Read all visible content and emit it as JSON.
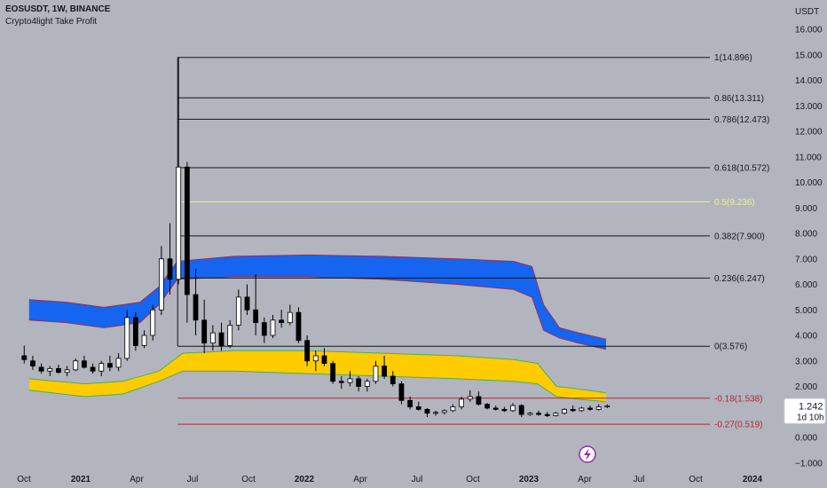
{
  "header": {
    "symbol_line": "EOSUSDT, 1W, BINANCE",
    "indicator": "Crypto4light Take Profit"
  },
  "axis": {
    "currency": "USDT",
    "price_ticks": [
      "16.000",
      "15.000",
      "14.000",
      "13.000",
      "12.000",
      "11.000",
      "10.000",
      "9.000",
      "8.000",
      "7.000",
      "6.000",
      "5.000",
      "4.000",
      "3.000",
      "2.000",
      "1.000",
      "0.000",
      "−1.000"
    ],
    "time_ticks": [
      {
        "label": "Oct",
        "bold": false
      },
      {
        "label": "2021",
        "bold": true
      },
      {
        "label": "Apr",
        "bold": false
      },
      {
        "label": "Jul",
        "bold": false
      },
      {
        "label": "Oct",
        "bold": false
      },
      {
        "label": "2022",
        "bold": true
      },
      {
        "label": "Apr",
        "bold": false
      },
      {
        "label": "Jul",
        "bold": false
      },
      {
        "label": "Oct",
        "bold": false
      },
      {
        "label": "2023",
        "bold": true
      },
      {
        "label": "Apr",
        "bold": false
      },
      {
        "label": "Jul",
        "bold": false
      },
      {
        "label": "Oct",
        "bold": false
      },
      {
        "label": "2024",
        "bold": true
      }
    ]
  },
  "price_badge": {
    "price": "1.242",
    "countdown": "1d 10h"
  },
  "flash_icon": "lightning-icon",
  "colors": {
    "background": "#b2b5be",
    "fib_line": "#131722",
    "fib_mid": "#f7f06b",
    "fib_neg": "#b22833",
    "blue_band": "#1565f0",
    "yellow_band": "#ffcc00",
    "band_edge_red": "#9c2b5a",
    "band_edge_green": "#4caf50",
    "candle_up": "#ffffff",
    "candle_down": "#000000"
  },
  "chart_data": {
    "type": "candlestick",
    "fib_levels": [
      {
        "label": "1(14.896)",
        "value": 14.896,
        "style": "black"
      },
      {
        "label": "0.86(13.311)",
        "value": 13.311,
        "style": "black"
      },
      {
        "label": "0.786(12.473)",
        "value": 12.473,
        "style": "black"
      },
      {
        "label": "0.618(10.572)",
        "value": 10.572,
        "style": "black"
      },
      {
        "label": "0.5(9.236)",
        "value": 9.236,
        "style": "mid"
      },
      {
        "label": "0.382(7.900)",
        "value": 7.9,
        "style": "black"
      },
      {
        "label": "0.236(6.247)",
        "value": 6.247,
        "style": "black"
      },
      {
        "label": "0(3.576)",
        "value": 3.576,
        "style": "black"
      },
      {
        "label": "-0.18(1.538)",
        "value": 1.538,
        "style": "neg"
      },
      {
        "label": "-0.27(0.519)",
        "value": 0.519,
        "style": "neg"
      }
    ],
    "upper_band": [
      {
        "t": "2020-09-01",
        "top": 5.4,
        "bot": 4.6
      },
      {
        "t": "2020-11-01",
        "top": 5.3,
        "bot": 4.5
      },
      {
        "t": "2021-01-01",
        "top": 5.1,
        "bot": 4.3
      },
      {
        "t": "2021-03-01",
        "top": 5.3,
        "bot": 4.5
      },
      {
        "t": "2021-04-01",
        "top": 5.9,
        "bot": 5.2
      },
      {
        "t": "2021-05-01",
        "top": 6.9,
        "bot": 6.2
      },
      {
        "t": "2021-08-01",
        "top": 7.1,
        "bot": 6.3
      },
      {
        "t": "2021-12-01",
        "top": 7.15,
        "bot": 6.3
      },
      {
        "t": "2022-04-01",
        "top": 7.1,
        "bot": 6.2
      },
      {
        "t": "2022-08-01",
        "top": 7.0,
        "bot": 6.0
      },
      {
        "t": "2022-11-01",
        "top": 6.9,
        "bot": 5.8
      },
      {
        "t": "2022-12-01",
        "top": 6.7,
        "bot": 5.5
      },
      {
        "t": "2022-12-20",
        "top": 5.2,
        "bot": 4.2
      },
      {
        "t": "2023-01-15",
        "top": 4.3,
        "bot": 3.9
      },
      {
        "t": "2023-02-15",
        "top": 4.1,
        "bot": 3.7
      },
      {
        "t": "2023-04-01",
        "top": 3.85,
        "bot": 3.45
      }
    ],
    "lower_band": [
      {
        "t": "2020-09-01",
        "top": 2.3,
        "bot": 1.85
      },
      {
        "t": "2020-12-01",
        "top": 2.1,
        "bot": 1.6
      },
      {
        "t": "2021-02-01",
        "top": 2.2,
        "bot": 1.7
      },
      {
        "t": "2021-04-01",
        "top": 2.6,
        "bot": 2.2
      },
      {
        "t": "2021-05-10",
        "top": 3.3,
        "bot": 2.6
      },
      {
        "t": "2021-08-01",
        "top": 3.4,
        "bot": 2.6
      },
      {
        "t": "2021-12-01",
        "top": 3.4,
        "bot": 2.5
      },
      {
        "t": "2022-04-01",
        "top": 3.3,
        "bot": 2.4
      },
      {
        "t": "2022-08-01",
        "top": 3.2,
        "bot": 2.3
      },
      {
        "t": "2022-11-01",
        "top": 3.05,
        "bot": 2.2
      },
      {
        "t": "2022-12-10",
        "top": 2.9,
        "bot": 2.1
      },
      {
        "t": "2023-01-10",
        "top": 2.0,
        "bot": 1.6
      },
      {
        "t": "2023-02-15",
        "top": 1.9,
        "bot": 1.5
      },
      {
        "t": "2023-04-01",
        "top": 1.75,
        "bot": 1.4
      }
    ],
    "candles": [
      {
        "t": "2020-08-24",
        "o": 3.2,
        "h": 3.6,
        "l": 2.9,
        "c": 3.05
      },
      {
        "t": "2020-09-07",
        "o": 3.0,
        "h": 3.2,
        "l": 2.65,
        "c": 2.8
      },
      {
        "t": "2020-09-21",
        "o": 2.75,
        "h": 2.9,
        "l": 2.5,
        "c": 2.6
      },
      {
        "t": "2020-10-05",
        "o": 2.6,
        "h": 2.8,
        "l": 2.4,
        "c": 2.7
      },
      {
        "t": "2020-10-19",
        "o": 2.7,
        "h": 2.85,
        "l": 2.5,
        "c": 2.55
      },
      {
        "t": "2020-11-02",
        "o": 2.55,
        "h": 2.8,
        "l": 2.4,
        "c": 2.65
      },
      {
        "t": "2020-11-16",
        "o": 2.65,
        "h": 3.1,
        "l": 2.6,
        "c": 3.0
      },
      {
        "t": "2020-11-30",
        "o": 3.0,
        "h": 3.2,
        "l": 2.7,
        "c": 2.75
      },
      {
        "t": "2020-12-14",
        "o": 2.75,
        "h": 2.9,
        "l": 2.5,
        "c": 2.6
      },
      {
        "t": "2020-12-28",
        "o": 2.6,
        "h": 3.0,
        "l": 2.4,
        "c": 2.9
      },
      {
        "t": "2021-01-11",
        "o": 2.9,
        "h": 3.2,
        "l": 2.6,
        "c": 2.75
      },
      {
        "t": "2021-01-25",
        "o": 2.75,
        "h": 3.3,
        "l": 2.6,
        "c": 3.1
      },
      {
        "t": "2021-02-08",
        "o": 3.1,
        "h": 5.0,
        "l": 3.0,
        "c": 4.7
      },
      {
        "t": "2021-02-22",
        "o": 4.7,
        "h": 4.9,
        "l": 3.4,
        "c": 3.6
      },
      {
        "t": "2021-03-08",
        "o": 3.6,
        "h": 4.2,
        "l": 3.5,
        "c": 4.0
      },
      {
        "t": "2021-03-22",
        "o": 4.0,
        "h": 5.2,
        "l": 3.8,
        "c": 5.0
      },
      {
        "t": "2021-04-05",
        "o": 5.0,
        "h": 7.5,
        "l": 4.8,
        "c": 7.0
      },
      {
        "t": "2021-04-19",
        "o": 7.0,
        "h": 8.4,
        "l": 5.6,
        "c": 6.2
      },
      {
        "t": "2021-05-03",
        "o": 6.2,
        "h": 14.9,
        "l": 6.0,
        "c": 10.6
      },
      {
        "t": "2021-05-17",
        "o": 10.6,
        "h": 10.8,
        "l": 4.5,
        "c": 5.6
      },
      {
        "t": "2021-05-31",
        "o": 5.6,
        "h": 6.6,
        "l": 4.0,
        "c": 4.6
      },
      {
        "t": "2021-06-14",
        "o": 4.6,
        "h": 5.4,
        "l": 3.3,
        "c": 3.7
      },
      {
        "t": "2021-06-28",
        "o": 3.7,
        "h": 4.4,
        "l": 3.4,
        "c": 4.1
      },
      {
        "t": "2021-07-12",
        "o": 4.1,
        "h": 4.5,
        "l": 3.4,
        "c": 3.6
      },
      {
        "t": "2021-07-26",
        "o": 3.6,
        "h": 4.6,
        "l": 3.5,
        "c": 4.4
      },
      {
        "t": "2021-08-09",
        "o": 4.4,
        "h": 5.8,
        "l": 4.2,
        "c": 5.5
      },
      {
        "t": "2021-08-23",
        "o": 5.5,
        "h": 6.0,
        "l": 4.8,
        "c": 5.0
      },
      {
        "t": "2021-09-06",
        "o": 5.0,
        "h": 6.4,
        "l": 4.0,
        "c": 4.5
      },
      {
        "t": "2021-09-20",
        "o": 4.5,
        "h": 4.7,
        "l": 3.7,
        "c": 4.0
      },
      {
        "t": "2021-10-04",
        "o": 4.0,
        "h": 4.8,
        "l": 3.9,
        "c": 4.6
      },
      {
        "t": "2021-10-18",
        "o": 4.6,
        "h": 5.0,
        "l": 4.3,
        "c": 4.5
      },
      {
        "t": "2021-11-01",
        "o": 4.5,
        "h": 5.2,
        "l": 4.4,
        "c": 4.9
      },
      {
        "t": "2021-11-15",
        "o": 4.9,
        "h": 5.1,
        "l": 3.7,
        "c": 3.8
      },
      {
        "t": "2021-11-29",
        "o": 3.8,
        "h": 4.0,
        "l": 2.8,
        "c": 3.0
      },
      {
        "t": "2021-12-13",
        "o": 3.0,
        "h": 3.4,
        "l": 2.6,
        "c": 3.2
      },
      {
        "t": "2021-12-27",
        "o": 3.2,
        "h": 3.5,
        "l": 2.8,
        "c": 2.9
      },
      {
        "t": "2022-01-10",
        "o": 2.9,
        "h": 3.0,
        "l": 2.1,
        "c": 2.2
      },
      {
        "t": "2022-01-24",
        "o": 2.2,
        "h": 2.4,
        "l": 1.9,
        "c": 2.15
      },
      {
        "t": "2022-02-07",
        "o": 2.15,
        "h": 2.6,
        "l": 2.0,
        "c": 2.3
      },
      {
        "t": "2022-02-21",
        "o": 2.3,
        "h": 2.4,
        "l": 1.8,
        "c": 2.0
      },
      {
        "t": "2022-03-07",
        "o": 2.0,
        "h": 2.3,
        "l": 1.8,
        "c": 2.2
      },
      {
        "t": "2022-03-21",
        "o": 2.2,
        "h": 3.0,
        "l": 2.1,
        "c": 2.8
      },
      {
        "t": "2022-04-04",
        "o": 2.8,
        "h": 3.2,
        "l": 2.3,
        "c": 2.4
      },
      {
        "t": "2022-04-18",
        "o": 2.4,
        "h": 2.6,
        "l": 2.0,
        "c": 2.1
      },
      {
        "t": "2022-05-02",
        "o": 2.1,
        "h": 2.2,
        "l": 1.3,
        "c": 1.45
      },
      {
        "t": "2022-05-16",
        "o": 1.45,
        "h": 1.6,
        "l": 1.1,
        "c": 1.2
      },
      {
        "t": "2022-05-30",
        "o": 1.2,
        "h": 1.4,
        "l": 1.05,
        "c": 1.1
      },
      {
        "t": "2022-06-13",
        "o": 1.1,
        "h": 1.15,
        "l": 0.8,
        "c": 0.95
      },
      {
        "t": "2022-06-27",
        "o": 0.95,
        "h": 1.05,
        "l": 0.85,
        "c": 0.98
      },
      {
        "t": "2022-07-11",
        "o": 0.98,
        "h": 1.1,
        "l": 0.9,
        "c": 1.05
      },
      {
        "t": "2022-07-25",
        "o": 1.05,
        "h": 1.3,
        "l": 1.0,
        "c": 1.2
      },
      {
        "t": "2022-08-08",
        "o": 1.2,
        "h": 1.6,
        "l": 1.1,
        "c": 1.5
      },
      {
        "t": "2022-08-22",
        "o": 1.5,
        "h": 1.85,
        "l": 1.4,
        "c": 1.6
      },
      {
        "t": "2022-09-05",
        "o": 1.6,
        "h": 1.8,
        "l": 1.25,
        "c": 1.3
      },
      {
        "t": "2022-09-19",
        "o": 1.3,
        "h": 1.35,
        "l": 1.1,
        "c": 1.15
      },
      {
        "t": "2022-10-03",
        "o": 1.15,
        "h": 1.25,
        "l": 1.05,
        "c": 1.1
      },
      {
        "t": "2022-10-17",
        "o": 1.1,
        "h": 1.2,
        "l": 1.0,
        "c": 1.05
      },
      {
        "t": "2022-10-31",
        "o": 1.05,
        "h": 1.35,
        "l": 1.0,
        "c": 1.25
      },
      {
        "t": "2022-11-14",
        "o": 1.25,
        "h": 1.3,
        "l": 0.8,
        "c": 0.9
      },
      {
        "t": "2022-11-28",
        "o": 0.9,
        "h": 1.0,
        "l": 0.85,
        "c": 0.95
      },
      {
        "t": "2022-12-12",
        "o": 0.95,
        "h": 1.05,
        "l": 0.85,
        "c": 0.9
      },
      {
        "t": "2022-12-26",
        "o": 0.9,
        "h": 1.0,
        "l": 0.8,
        "c": 0.85
      },
      {
        "t": "2023-01-09",
        "o": 0.85,
        "h": 1.0,
        "l": 0.82,
        "c": 0.95
      },
      {
        "t": "2023-01-23",
        "o": 0.95,
        "h": 1.15,
        "l": 0.9,
        "c": 1.1
      },
      {
        "t": "2023-02-06",
        "o": 1.1,
        "h": 1.25,
        "l": 1.0,
        "c": 1.05
      },
      {
        "t": "2023-02-20",
        "o": 1.05,
        "h": 1.2,
        "l": 1.0,
        "c": 1.15
      },
      {
        "t": "2023-03-06",
        "o": 1.15,
        "h": 1.25,
        "l": 1.05,
        "c": 1.1
      },
      {
        "t": "2023-03-20",
        "o": 1.1,
        "h": 1.3,
        "l": 1.05,
        "c": 1.2
      },
      {
        "t": "2023-04-03",
        "o": 1.2,
        "h": 1.3,
        "l": 1.15,
        "c": 1.24
      }
    ]
  }
}
